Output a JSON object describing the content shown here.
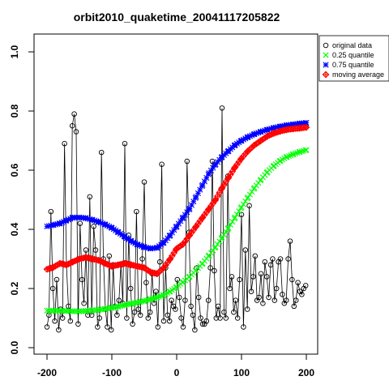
{
  "chart_data": {
    "type": "scatter",
    "title": "orbit2010_quaketime_20041117205822",
    "xlabel": "",
    "ylabel": "",
    "xlim": [
      -200,
      200
    ],
    "ylim": [
      0,
      1
    ],
    "x_ticks": [
      -200,
      -100,
      0,
      100,
      200
    ],
    "y_ticks": [
      0.0,
      0.2,
      0.4,
      0.6,
      0.8,
      1.0
    ],
    "x_tick_labels": [
      "-200",
      "-100",
      "0",
      "100",
      "200"
    ],
    "y_tick_labels": [
      "0.0",
      "0.2",
      "0.4",
      "0.6",
      "0.8",
      "1.0"
    ],
    "grid": false,
    "legend_position": "top-right",
    "legend": [
      {
        "label": "original data",
        "marker": "circle",
        "color": "#000000"
      },
      {
        "label": "0.25 quantile",
        "marker": "x",
        "color": "#00ff00"
      },
      {
        "label": "0.75 quantile",
        "marker": "asterisk",
        "color": "#0000ff"
      },
      {
        "label": "moving average",
        "marker": "diamond-plus",
        "color": "#ff0000"
      }
    ],
    "series": [
      {
        "name": "original data",
        "color": "#000000",
        "marker": "circle",
        "connected": true,
        "x": [
          -200,
          -197,
          -194,
          -191,
          -188,
          -185,
          -182,
          -179,
          -176,
          -173,
          -170,
          -167,
          -164,
          -161,
          -158,
          -155,
          -152,
          -149,
          -146,
          -143,
          -140,
          -137,
          -134,
          -131,
          -128,
          -125,
          -122,
          -119,
          -116,
          -113,
          -110,
          -107,
          -104,
          -101,
          -98,
          -95,
          -92,
          -89,
          -86,
          -83,
          -80,
          -77,
          -74,
          -71,
          -68,
          -65,
          -62,
          -59,
          -56,
          -53,
          -50,
          -47,
          -44,
          -41,
          -38,
          -35,
          -32,
          -29,
          -26,
          -23,
          -20,
          -17,
          -14,
          -11,
          -8,
          -5,
          -2,
          1,
          4,
          7,
          10,
          13,
          16,
          19,
          22,
          25,
          28,
          31,
          34,
          37,
          40,
          43,
          46,
          49,
          52,
          55,
          58,
          61,
          64,
          67,
          70,
          73,
          76,
          79,
          82,
          85,
          88,
          91,
          94,
          97,
          100,
          103,
          106,
          109,
          112,
          115,
          118,
          121,
          124,
          127,
          130,
          133,
          136,
          139,
          142,
          145,
          148,
          151,
          154,
          157,
          160,
          163,
          166,
          169,
          172,
          175,
          178,
          181,
          184,
          187,
          190,
          193,
          196,
          199
        ],
        "y": [
          0.07,
          0.11,
          0.46,
          0.2,
          0.09,
          0.23,
          0.06,
          0.13,
          0.1,
          0.69,
          0.28,
          0.14,
          0.09,
          0.75,
          0.79,
          0.73,
          0.08,
          0.42,
          0.23,
          0.15,
          0.33,
          0.11,
          0.51,
          0.11,
          0.41,
          0.33,
          0.07,
          0.1,
          0.66,
          0.3,
          0.13,
          0.07,
          0.31,
          0.06,
          0.28,
          0.14,
          0.11,
          0.16,
          0.28,
          0.15,
          0.69,
          0.1,
          0.38,
          0.2,
          0.08,
          0.12,
          0.46,
          0.13,
          0.11,
          0.3,
          0.56,
          0.22,
          0.1,
          0.12,
          0.25,
          0.15,
          0.19,
          0.07,
          0.29,
          0.62,
          0.09,
          0.27,
          0.11,
          0.09,
          0.16,
          0.14,
          0.13,
          0.23,
          0.17,
          0.1,
          0.07,
          0.16,
          0.63,
          0.39,
          0.14,
          0.11,
          0.06,
          0.27,
          0.17,
          0.1,
          0.08,
          0.08,
          0.09,
          0.16,
          0.27,
          0.63,
          0.26,
          0.1,
          0.14,
          0.1,
          0.81,
          0.12,
          0.1,
          0.58,
          0.2,
          0.24,
          0.12,
          0.16,
          0.1,
          0.23,
          0.45,
          0.07,
          0.33,
          0.13,
          0.48,
          0.19,
          0.24,
          0.31,
          0.16,
          0.17,
          0.25,
          0.15,
          0.29,
          0.24,
          0.17,
          0.28,
          0.3,
          0.16,
          0.2,
          0.29,
          0.3,
          0.18,
          0.15,
          0.16,
          0.3,
          0.36,
          0.23,
          0.14,
          0.16,
          0.22,
          0.19,
          0.18,
          0.2,
          0.21
        ]
      },
      {
        "name": "0.25 quantile",
        "color": "#00ff00",
        "marker": "x",
        "connected": false,
        "x": [
          -200,
          -190,
          -180,
          -170,
          -160,
          -150,
          -140,
          -130,
          -120,
          -110,
          -100,
          -90,
          -80,
          -70,
          -60,
          -50,
          -40,
          -30,
          -20,
          -10,
          0,
          10,
          20,
          30,
          40,
          50,
          60,
          70,
          80,
          90,
          100,
          110,
          120,
          130,
          140,
          150,
          160,
          170,
          180,
          190,
          200
        ],
        "y": [
          0.125,
          0.125,
          0.125,
          0.124,
          0.123,
          0.123,
          0.124,
          0.126,
          0.128,
          0.131,
          0.135,
          0.139,
          0.144,
          0.149,
          0.153,
          0.158,
          0.164,
          0.17,
          0.178,
          0.19,
          0.205,
          0.222,
          0.24,
          0.262,
          0.285,
          0.312,
          0.34,
          0.372,
          0.405,
          0.44,
          0.475,
          0.508,
          0.54,
          0.568,
          0.594,
          0.615,
          0.632,
          0.645,
          0.654,
          0.662,
          0.668
        ]
      },
      {
        "name": "0.75 quantile",
        "color": "#0000ff",
        "marker": "asterisk",
        "connected": false,
        "x": [
          -200,
          -190,
          -180,
          -170,
          -160,
          -150,
          -140,
          -130,
          -120,
          -110,
          -100,
          -90,
          -80,
          -70,
          -60,
          -50,
          -40,
          -30,
          -20,
          -10,
          0,
          10,
          20,
          30,
          40,
          50,
          60,
          70,
          80,
          90,
          100,
          110,
          120,
          130,
          140,
          150,
          160,
          170,
          180,
          190,
          200
        ],
        "y": [
          0.41,
          0.415,
          0.42,
          0.43,
          0.44,
          0.44,
          0.438,
          0.432,
          0.425,
          0.416,
          0.405,
          0.39,
          0.375,
          0.36,
          0.348,
          0.34,
          0.335,
          0.338,
          0.355,
          0.38,
          0.41,
          0.44,
          0.47,
          0.51,
          0.55,
          0.59,
          0.62,
          0.645,
          0.665,
          0.685,
          0.7,
          0.712,
          0.722,
          0.73,
          0.737,
          0.743,
          0.748,
          0.752,
          0.755,
          0.758,
          0.76
        ]
      },
      {
        "name": "moving average",
        "color": "#ff0000",
        "marker": "diamond-plus",
        "connected": false,
        "x": [
          -200,
          -190,
          -180,
          -170,
          -160,
          -150,
          -140,
          -130,
          -120,
          -110,
          -100,
          -90,
          -80,
          -70,
          -60,
          -50,
          -40,
          -30,
          -20,
          -10,
          0,
          10,
          20,
          30,
          40,
          50,
          60,
          70,
          80,
          90,
          100,
          110,
          120,
          130,
          140,
          150,
          160,
          170,
          180,
          190,
          200
        ],
        "y": [
          0.265,
          0.272,
          0.285,
          0.28,
          0.29,
          0.3,
          0.305,
          0.3,
          0.295,
          0.285,
          0.275,
          0.28,
          0.285,
          0.28,
          0.275,
          0.27,
          0.255,
          0.25,
          0.27,
          0.3,
          0.335,
          0.35,
          0.38,
          0.41,
          0.44,
          0.47,
          0.5,
          0.54,
          0.575,
          0.61,
          0.64,
          0.665,
          0.685,
          0.7,
          0.715,
          0.725,
          0.732,
          0.737,
          0.74,
          0.742,
          0.745
        ]
      }
    ]
  }
}
